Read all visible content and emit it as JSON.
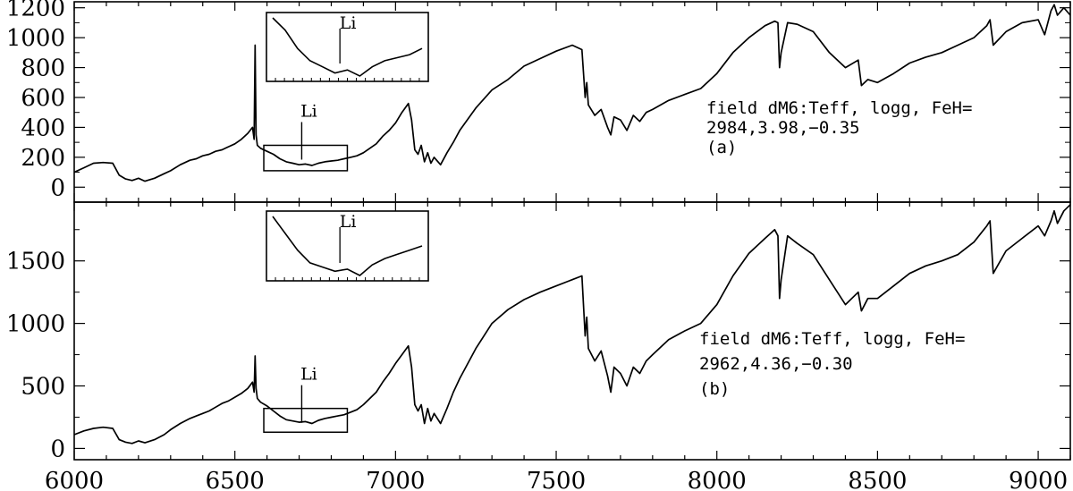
{
  "chart_data": [
    {
      "type": "line",
      "panel": "a",
      "xlim": [
        6000,
        9100
      ],
      "ylim": [
        -100,
        1240
      ],
      "xticks": [
        6000,
        6500,
        7000,
        7500,
        8000,
        8500,
        9000
      ],
      "yticks": [
        0,
        200,
        400,
        600,
        800,
        1000,
        1200
      ],
      "ytick_labels": [
        "0",
        "200",
        "400",
        "600",
        "800",
        "1000",
        "1200"
      ],
      "annotation": [
        "field dM6:Teff, logg, FeH=",
        "2984,3.98,−0.35",
        "(a)"
      ],
      "li_label": "Li",
      "li_wavelength": 6708,
      "li_box": {
        "x": [
          6590,
          6850
        ],
        "y": [
          110,
          280
        ]
      },
      "series": [
        {
          "x": [
            6000,
            6030,
            6060,
            6090,
            6120,
            6140,
            6160,
            6180,
            6200,
            6220,
            6250,
            6280,
            6300,
            6330,
            6360,
            6380,
            6400,
            6420,
            6440,
            6460,
            6480,
            6500,
            6520,
            6540,
            6555,
            6560,
            6563,
            6566,
            6570,
            6580,
            6600,
            6620,
            6640,
            6660,
            6680,
            6700,
            6720,
            6740,
            6760,
            6780,
            6800,
            6820,
            6840,
            6860,
            6880,
            6900,
            6920,
            6940,
            6960,
            6980,
            7000,
            7020,
            7040,
            7050,
            7060,
            7070,
            7080,
            7090,
            7100,
            7110,
            7120,
            7140,
            7160,
            7180,
            7200,
            7250,
            7300,
            7350,
            7400,
            7450,
            7500,
            7550,
            7580,
            7590,
            7595,
            7600,
            7620,
            7640,
            7660,
            7670,
            7680,
            7700,
            7720,
            7740,
            7760,
            7780,
            7800,
            7850,
            7900,
            7950,
            8000,
            8050,
            8100,
            8150,
            8180,
            8190,
            8195,
            8200,
            8220,
            8250,
            8300,
            8350,
            8400,
            8440,
            8450,
            8470,
            8500,
            8550,
            8600,
            8650,
            8700,
            8750,
            8800,
            8840,
            8850,
            8860,
            8900,
            8950,
            9000,
            9020,
            9040,
            9050,
            9060,
            9080,
            9100
          ],
          "y": [
            100,
            130,
            160,
            165,
            160,
            80,
            55,
            45,
            60,
            40,
            60,
            90,
            110,
            150,
            180,
            190,
            210,
            220,
            240,
            250,
            270,
            290,
            320,
            360,
            400,
            320,
            950,
            350,
            280,
            260,
            240,
            220,
            190,
            170,
            160,
            150,
            155,
            145,
            160,
            170,
            175,
            180,
            190,
            200,
            210,
            230,
            260,
            290,
            340,
            380,
            430,
            500,
            560,
            450,
            250,
            220,
            280,
            170,
            230,
            160,
            200,
            150,
            230,
            300,
            380,
            530,
            650,
            720,
            810,
            860,
            910,
            950,
            920,
            600,
            700,
            550,
            480,
            520,
            400,
            350,
            470,
            450,
            380,
            480,
            440,
            500,
            520,
            580,
            620,
            660,
            760,
            900,
            1000,
            1080,
            1110,
            1100,
            800,
            900,
            1100,
            1090,
            1040,
            900,
            800,
            850,
            680,
            720,
            700,
            760,
            830,
            870,
            900,
            950,
            1000,
            1080,
            1120,
            950,
            1040,
            1100,
            1120,
            1020,
            1180,
            1220,
            1150,
            1200,
            1150
          ]
        }
      ]
    },
    {
      "type": "line",
      "panel": "b",
      "xlim": [
        6000,
        9100
      ],
      "ylim": [
        -90,
        1970
      ],
      "xticks": [
        6000,
        6500,
        7000,
        7500,
        8000,
        8500,
        9000
      ],
      "xtick_labels": [
        "6000",
        "6500",
        "7000",
        "7500",
        "8000",
        "8500",
        "9000"
      ],
      "yticks": [
        0,
        500,
        1000,
        1500
      ],
      "ytick_labels": [
        "0",
        "500",
        "1000",
        "1500"
      ],
      "annotation": [
        "field dM6:Teff, logg, FeH=",
        "2962,4.36,−0.30",
        "(b)"
      ],
      "li_label": "Li",
      "li_wavelength": 6708,
      "li_box": {
        "x": [
          6590,
          6850
        ],
        "y": [
          130,
          320
        ]
      },
      "series": [
        {
          "x": [
            6000,
            6030,
            6060,
            6090,
            6120,
            6140,
            6160,
            6180,
            6200,
            6220,
            6250,
            6280,
            6300,
            6330,
            6360,
            6380,
            6400,
            6420,
            6440,
            6460,
            6480,
            6500,
            6520,
            6540,
            6555,
            6560,
            6563,
            6566,
            6570,
            6580,
            6600,
            6620,
            6640,
            6660,
            6680,
            6700,
            6720,
            6740,
            6760,
            6780,
            6800,
            6820,
            6840,
            6860,
            6880,
            6900,
            6920,
            6940,
            6960,
            6980,
            7000,
            7020,
            7040,
            7050,
            7060,
            7070,
            7080,
            7090,
            7100,
            7110,
            7120,
            7140,
            7160,
            7180,
            7200,
            7250,
            7300,
            7350,
            7400,
            7450,
            7500,
            7550,
            7580,
            7590,
            7595,
            7600,
            7620,
            7640,
            7660,
            7670,
            7680,
            7700,
            7720,
            7740,
            7760,
            7780,
            7800,
            7850,
            7900,
            7950,
            8000,
            8050,
            8100,
            8150,
            8180,
            8190,
            8195,
            8200,
            8220,
            8250,
            8300,
            8350,
            8400,
            8440,
            8450,
            8470,
            8500,
            8550,
            8600,
            8650,
            8700,
            8750,
            8800,
            8840,
            8850,
            8860,
            8900,
            8950,
            9000,
            9020,
            9040,
            9050,
            9060,
            9080,
            9100
          ],
          "y": [
            110,
            140,
            160,
            170,
            160,
            70,
            50,
            40,
            60,
            45,
            70,
            110,
            150,
            200,
            240,
            260,
            280,
            300,
            330,
            360,
            380,
            410,
            440,
            480,
            530,
            450,
            740,
            480,
            400,
            370,
            340,
            300,
            260,
            230,
            220,
            210,
            215,
            200,
            225,
            240,
            250,
            260,
            270,
            290,
            310,
            350,
            400,
            450,
            530,
            600,
            680,
            750,
            820,
            650,
            350,
            300,
            350,
            200,
            320,
            220,
            280,
            200,
            320,
            450,
            560,
            800,
            1000,
            1110,
            1190,
            1250,
            1300,
            1350,
            1380,
            900,
            1050,
            800,
            700,
            780,
            580,
            450,
            650,
            600,
            500,
            650,
            600,
            700,
            750,
            870,
            940,
            1000,
            1150,
            1380,
            1560,
            1680,
            1750,
            1700,
            1200,
            1350,
            1700,
            1640,
            1550,
            1350,
            1150,
            1250,
            1100,
            1200,
            1200,
            1300,
            1400,
            1460,
            1500,
            1550,
            1650,
            1780,
            1820,
            1400,
            1580,
            1680,
            1780,
            1700,
            1820,
            1900,
            1800,
            1900,
            1950
          ]
        }
      ]
    }
  ]
}
